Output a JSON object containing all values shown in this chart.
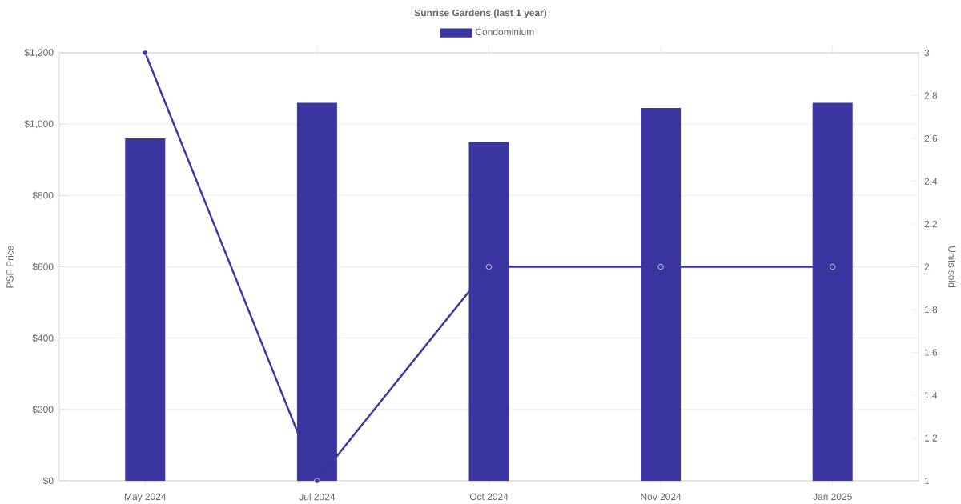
{
  "chart_data": {
    "type": "bar",
    "title": "Sunrise Gardens (last 1 year)",
    "categories": [
      "May 2024",
      "Jul 2024",
      "Oct 2024",
      "Nov 2024",
      "Jan 2025"
    ],
    "series": [
      {
        "name": "Condominium",
        "color": "#3a35a0",
        "values": [
          960,
          1060,
          950,
          1045,
          1060
        ]
      },
      {
        "type": "line",
        "axis": "y2",
        "color": "#3a35a0",
        "marker": "circle",
        "values": [
          3,
          1,
          2,
          2,
          2
        ]
      }
    ],
    "ylabel": "PSF Price",
    "y2label": "Units sold",
    "ylim": [
      0,
      1200
    ],
    "yticks": [
      {
        "value": 0,
        "label": "$0"
      },
      {
        "value": 200,
        "label": "$200"
      },
      {
        "value": 400,
        "label": "$400"
      },
      {
        "value": 600,
        "label": "$600"
      },
      {
        "value": 800,
        "label": "$800"
      },
      {
        "value": 1000,
        "label": "$1,000"
      },
      {
        "value": 1200,
        "label": "$1,200"
      }
    ],
    "y2lim": [
      1,
      3
    ],
    "y2ticks": [
      1,
      1.2,
      1.4,
      1.6,
      1.8,
      2,
      2.2,
      2.4,
      2.6,
      2.8,
      3
    ],
    "grid": "y",
    "legend": "top"
  }
}
